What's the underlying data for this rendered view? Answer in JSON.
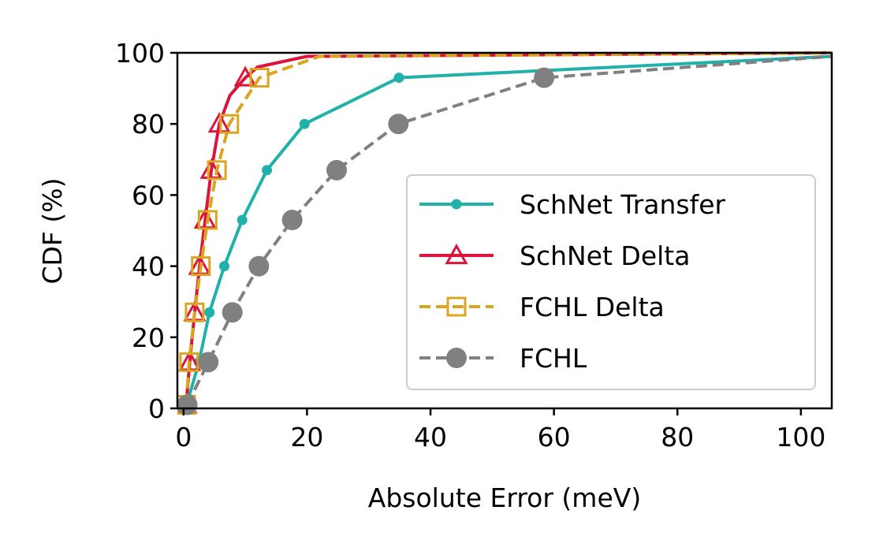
{
  "chart_data": {
    "type": "line",
    "xlabel": "Absolute Error (meV)",
    "ylabel": "CDF (%)",
    "xlim": [
      -1,
      105
    ],
    "ylim": [
      0,
      100
    ],
    "xticks": [
      0,
      20,
      40,
      60,
      80,
      100
    ],
    "yticks": [
      0,
      20,
      40,
      60,
      80,
      100
    ],
    "grid": false,
    "legend_position": "lower-right",
    "series": [
      {
        "name": "SchNet Transfer",
        "color": "#20b2aa",
        "style": "solid",
        "marker": "small-dot",
        "x": [
          0.5,
          2.5,
          4.2,
          6.6,
          9.5,
          13.5,
          19.6,
          34.9,
          105
        ],
        "y": [
          1,
          13,
          27,
          40,
          53,
          67,
          80,
          93,
          99
        ]
      },
      {
        "name": "SchNet Delta",
        "color": "#dc143c",
        "style": "solid",
        "marker": "triangle-open",
        "x": [
          0.4,
          1.0,
          1.8,
          2.6,
          3.5,
          4.5,
          5.8,
          7.5,
          10.0,
          12.0,
          20,
          105
        ],
        "y": [
          1,
          13,
          27,
          40,
          53,
          67,
          80,
          88,
          93,
          96,
          99,
          100
        ],
        "marker_index": [
          0,
          1,
          2,
          3,
          4,
          5,
          6,
          8
        ]
      },
      {
        "name": "FCHL Delta",
        "color": "#daa520",
        "style": "dashed",
        "marker": "square-open",
        "x": [
          0.4,
          0.9,
          1.8,
          2.8,
          3.9,
          5.4,
          7.4,
          12.3,
          22,
          105
        ],
        "y": [
          1,
          13,
          27,
          40,
          53,
          67,
          80,
          93,
          99,
          100
        ],
        "marker_index": [
          0,
          1,
          2,
          3,
          4,
          5,
          6,
          7
        ]
      },
      {
        "name": "FCHL",
        "color": "#808080",
        "style": "dashed",
        "marker": "large-dot",
        "x": [
          0.6,
          4.0,
          7.9,
          12.2,
          17.6,
          24.8,
          34.8,
          58.4,
          105
        ],
        "y": [
          1,
          13,
          27,
          40,
          53,
          67,
          80,
          93,
          99
        ],
        "marker_index": [
          0,
          1,
          2,
          3,
          4,
          5,
          6,
          7
        ]
      }
    ]
  }
}
